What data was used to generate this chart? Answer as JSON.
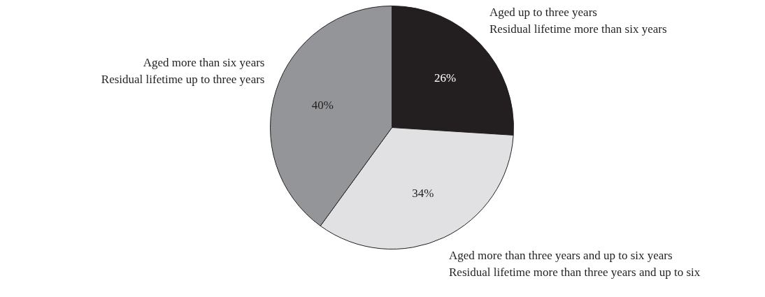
{
  "chart_data": {
    "type": "pie",
    "categories": [
      "Aged up to three years\nResidual lifetime more than six years",
      "Aged more than three years and up to six years\nResidual lifetime more than three years and up to six",
      "Aged more than six years\nResidual lifetime up to three years"
    ],
    "values": [
      26,
      34,
      40
    ],
    "colors": [
      "#231f20",
      "#e1e1e3",
      "#939598"
    ],
    "value_labels": [
      "26%",
      "34%",
      "40%"
    ]
  }
}
